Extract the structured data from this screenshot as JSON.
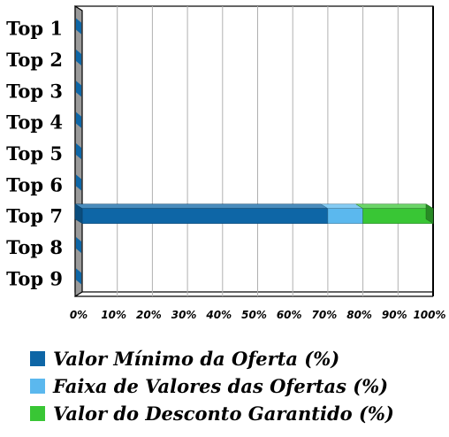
{
  "chart_data": {
    "type": "bar",
    "orientation": "horizontal",
    "stacked": "percent",
    "categories": [
      "Top 1",
      "Top 2",
      "Top 3",
      "Top 4",
      "Top 5",
      "Top 6",
      "Top 7",
      "Top 8",
      "Top 9"
    ],
    "series": [
      {
        "name": "Valor Mínimo da Oferta (%)",
        "color": "#0E66A6",
        "values": [
          0,
          0,
          0,
          0,
          0,
          0,
          70,
          0,
          0
        ]
      },
      {
        "name": "Faixa de Valores das Ofertas (%)",
        "color": "#5BB8EE",
        "values": [
          0,
          0,
          0,
          0,
          0,
          0,
          10,
          0,
          0
        ]
      },
      {
        "name": "Valor do Desconto Garantido (%)",
        "color": "#39C635",
        "values": [
          0,
          0,
          0,
          0,
          0,
          0,
          20,
          0,
          0
        ]
      }
    ],
    "x_ticks": [
      "0%",
      "10%",
      "20%",
      "30%",
      "40%",
      "50%",
      "60%",
      "70%",
      "80%",
      "90%",
      "100%"
    ],
    "xlim": [
      0,
      100
    ],
    "grid": true,
    "legend_placement": "bottom-left"
  }
}
